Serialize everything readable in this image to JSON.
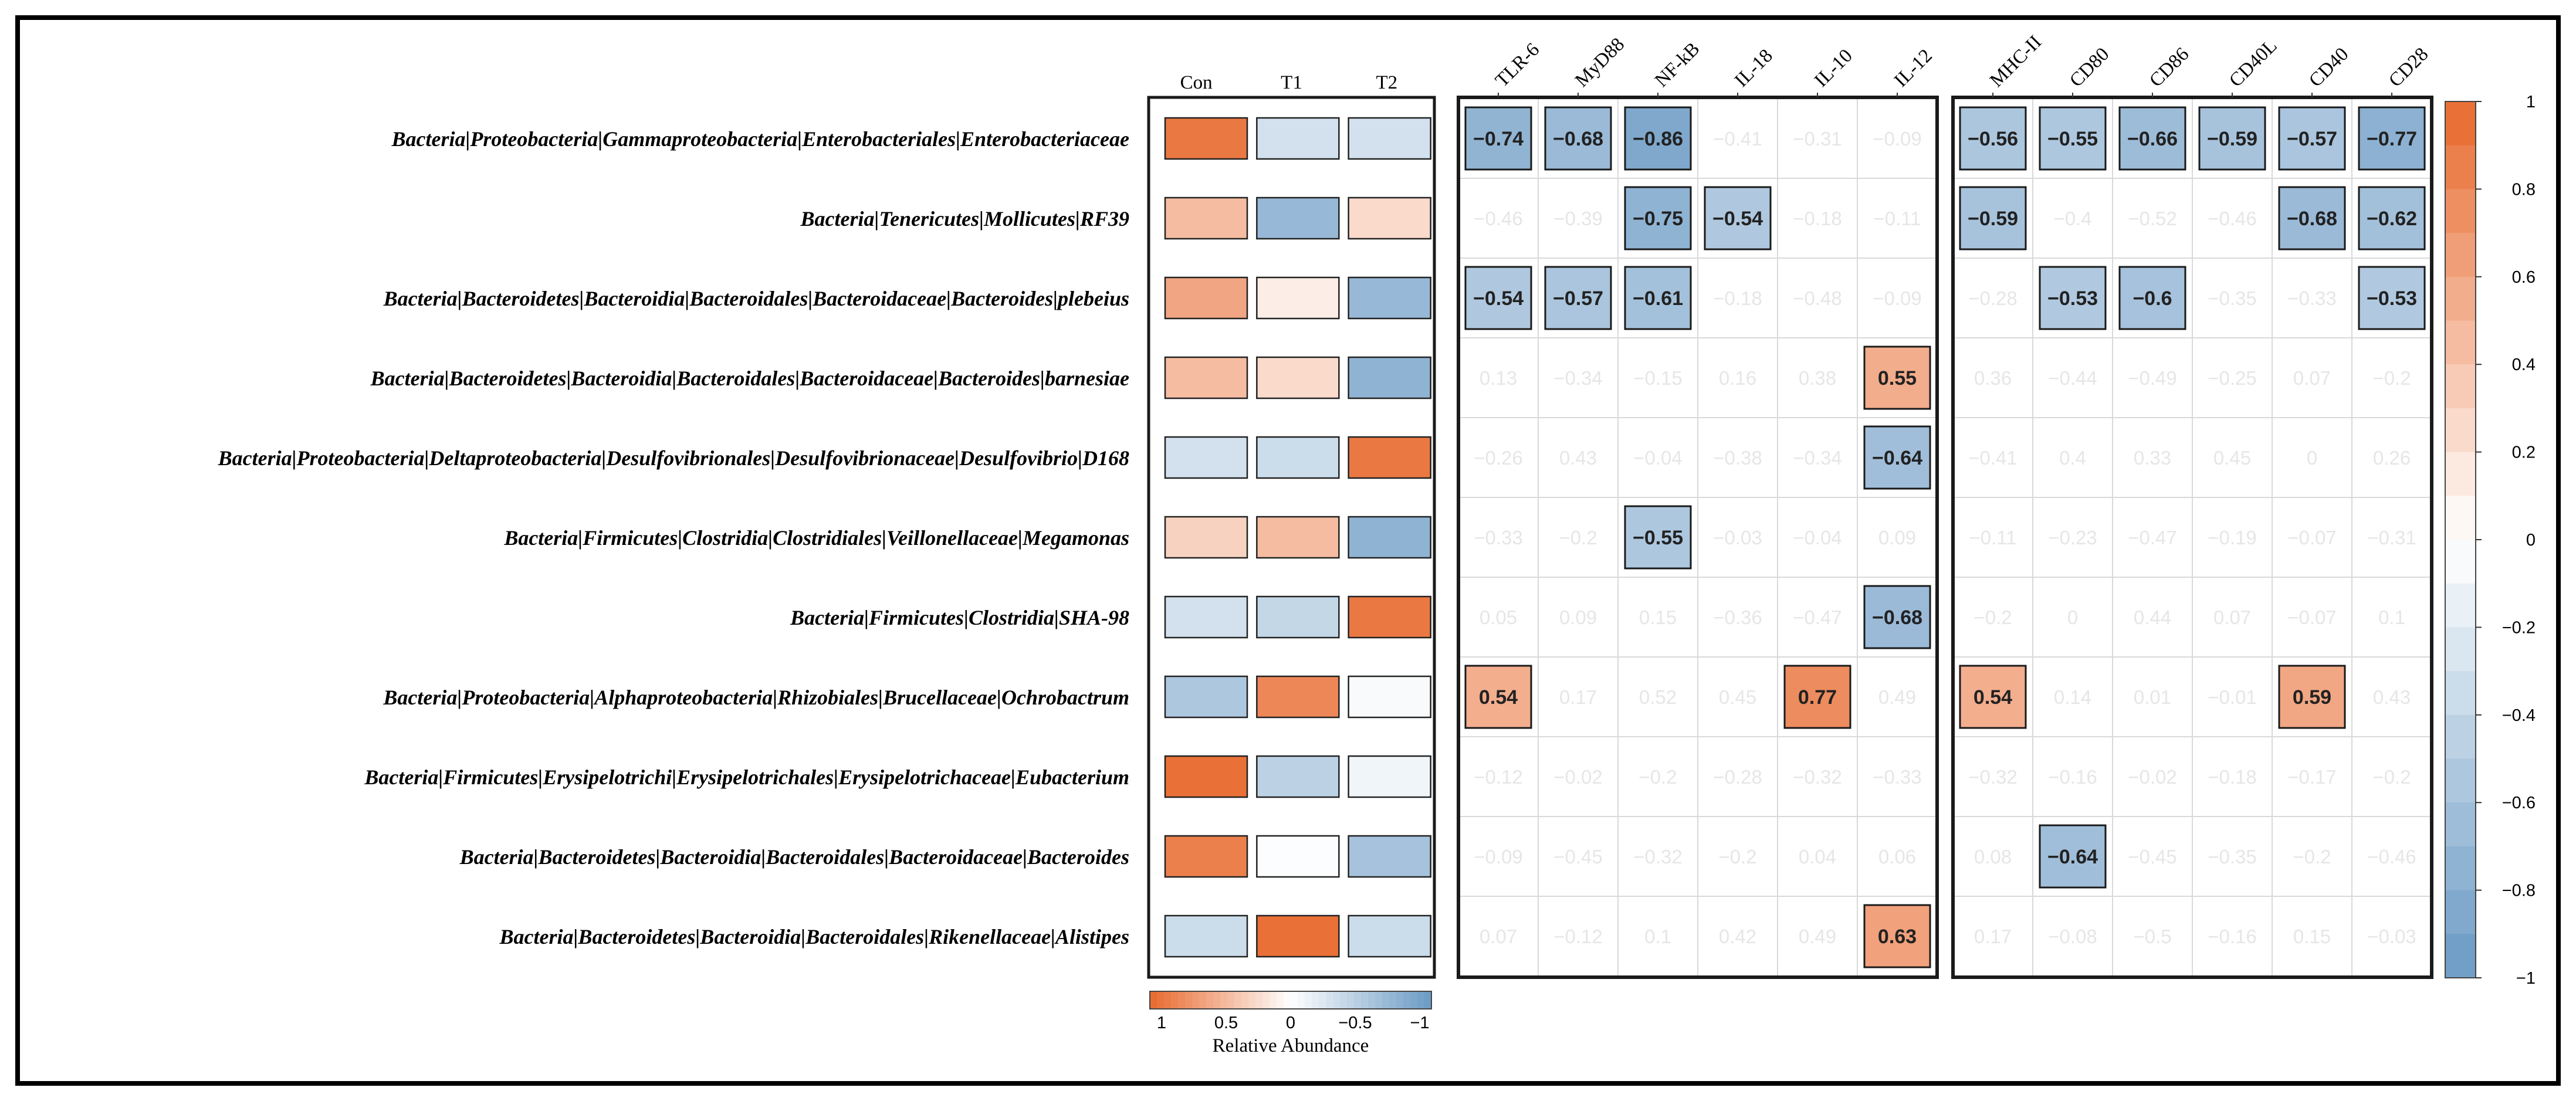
{
  "chart_data": {
    "type": "heatmap",
    "taxa": [
      "Bacteria|Proteobacteria|Gammaproteobacteria|Enterobacteriales|Enterobacteriaceae",
      "Bacteria|Tenericutes|Mollicutes|RF39",
      "Bacteria|Bacteroidetes|Bacteroidia|Bacteroidales|Bacteroidaceae|Bacteroides|plebeius",
      "Bacteria|Bacteroidetes|Bacteroidia|Bacteroidales|Bacteroidaceae|Bacteroides|barnesiae",
      "Bacteria|Proteobacteria|Deltaproteobacteria|Desulfovibrionales|Desulfovibrionaceae|Desulfovibrio|D168",
      "Bacteria|Firmicutes|Clostridia|Clostridiales|Veillonellaceae|Megamonas",
      "Bacteria|Firmicutes|Clostridia|SHA-98",
      "Bacteria|Proteobacteria|Alphaproteobacteria|Rhizobiales|Brucellaceae|Ochrobactrum",
      "Bacteria|Firmicutes|Erysipelotrichi|Erysipelotrichales|Erysipelotrichaceae|Eubacterium",
      "Bacteria|Bacteroidetes|Bacteroidia|Bacteroidales|Bacteroidaceae|Bacteroides",
      "Bacteria|Bacteroidetes|Bacteroidia|Bacteroidales|Rikenellaceae|Alistipes"
    ],
    "abundance": {
      "groups": [
        "Con",
        "T1",
        "T2"
      ],
      "values": [
        [
          0.9,
          -0.3,
          -0.3
        ],
        [
          0.45,
          -0.7,
          0.25
        ],
        [
          0.6,
          0.12,
          -0.7
        ],
        [
          0.45,
          0.25,
          -0.75
        ],
        [
          -0.3,
          -0.35,
          0.9
        ],
        [
          0.3,
          0.45,
          -0.75
        ],
        [
          -0.3,
          -0.4,
          0.9
        ],
        [
          -0.55,
          0.8,
          -0.05
        ],
        [
          0.95,
          -0.45,
          -0.1
        ],
        [
          0.85,
          -0.02,
          -0.6
        ],
        [
          -0.35,
          0.95,
          -0.35
        ]
      ],
      "legend_title": "Relative Abundance",
      "legend_ticks": [
        "1",
        "0.5",
        "0",
        "−0.5",
        "−1"
      ]
    },
    "panel1": {
      "columns": [
        "TLR-6",
        "MyD88",
        "NF-kB",
        "IL-18",
        "IL-10",
        "IL-12"
      ],
      "values": [
        [
          -0.74,
          -0.68,
          -0.86,
          -0.41,
          -0.31,
          -0.09
        ],
        [
          -0.46,
          -0.39,
          -0.75,
          -0.54,
          -0.18,
          -0.11
        ],
        [
          -0.54,
          -0.57,
          -0.61,
          -0.18,
          -0.48,
          -0.09
        ],
        [
          0.13,
          -0.34,
          -0.15,
          0.16,
          0.38,
          0.55
        ],
        [
          -0.26,
          0.43,
          -0.04,
          -0.38,
          -0.34,
          -0.64
        ],
        [
          -0.33,
          -0.2,
          -0.55,
          -0.03,
          -0.04,
          0.09
        ],
        [
          0.05,
          0.09,
          0.15,
          -0.36,
          -0.47,
          -0.68
        ],
        [
          0.54,
          0.17,
          0.52,
          0.45,
          0.77,
          0.49
        ],
        [
          -0.12,
          -0.02,
          -0.2,
          -0.28,
          -0.32,
          -0.33
        ],
        [
          -0.09,
          -0.45,
          -0.32,
          -0.2,
          0.04,
          0.06
        ],
        [
          0.07,
          -0.12,
          0.1,
          0.42,
          0.49,
          0.63
        ]
      ],
      "significant": [
        [
          1,
          1,
          1,
          0,
          0,
          0
        ],
        [
          0,
          0,
          1,
          1,
          0,
          0
        ],
        [
          1,
          1,
          1,
          0,
          0,
          0
        ],
        [
          0,
          0,
          0,
          0,
          0,
          1
        ],
        [
          0,
          0,
          0,
          0,
          0,
          1
        ],
        [
          0,
          0,
          1,
          0,
          0,
          0
        ],
        [
          0,
          0,
          0,
          0,
          0,
          1
        ],
        [
          1,
          0,
          0,
          0,
          1,
          0
        ],
        [
          0,
          0,
          0,
          0,
          0,
          0
        ],
        [
          0,
          0,
          0,
          0,
          0,
          0
        ],
        [
          0,
          0,
          0,
          0,
          0,
          1
        ]
      ]
    },
    "panel2": {
      "columns": [
        "MHC-II",
        "CD80",
        "CD86",
        "CD40L",
        "CD40",
        "CD28"
      ],
      "values": [
        [
          -0.56,
          -0.55,
          -0.66,
          -0.59,
          -0.57,
          -0.77
        ],
        [
          -0.59,
          -0.4,
          -0.52,
          -0.46,
          -0.68,
          -0.62
        ],
        [
          -0.28,
          -0.53,
          -0.6,
          -0.35,
          -0.33,
          -0.53
        ],
        [
          0.36,
          -0.44,
          -0.49,
          -0.25,
          0.07,
          -0.2
        ],
        [
          -0.41,
          0.4,
          0.33,
          0.45,
          0,
          0.26
        ],
        [
          -0.11,
          -0.23,
          -0.47,
          -0.19,
          -0.07,
          -0.31
        ],
        [
          -0.2,
          0,
          0.44,
          0.07,
          -0.07,
          0.1
        ],
        [
          0.54,
          0.14,
          0.01,
          -0.01,
          0.59,
          0.43
        ],
        [
          -0.32,
          -0.16,
          -0.02,
          -0.18,
          -0.17,
          -0.2
        ],
        [
          0.08,
          -0.64,
          -0.45,
          -0.35,
          -0.2,
          -0.46
        ],
        [
          0.17,
          -0.08,
          -0.5,
          -0.16,
          0.15,
          -0.03
        ]
      ],
      "significant": [
        [
          1,
          1,
          1,
          1,
          1,
          1
        ],
        [
          1,
          0,
          0,
          0,
          1,
          1
        ],
        [
          0,
          1,
          1,
          0,
          0,
          1
        ],
        [
          0,
          0,
          0,
          0,
          0,
          0
        ],
        [
          0,
          0,
          0,
          0,
          0,
          0
        ],
        [
          0,
          0,
          0,
          0,
          0,
          0
        ],
        [
          0,
          0,
          0,
          0,
          0,
          0
        ],
        [
          1,
          0,
          0,
          0,
          1,
          0
        ],
        [
          0,
          0,
          0,
          0,
          0,
          0
        ],
        [
          0,
          1,
          0,
          0,
          0,
          0
        ],
        [
          0,
          0,
          0,
          0,
          0,
          0
        ]
      ]
    },
    "colorbar": {
      "range": [
        -1,
        1
      ],
      "ticks": [
        1,
        0.8,
        0.6,
        0.4,
        0.2,
        0,
        -0.2,
        -0.4,
        -0.6,
        -0.8,
        -1
      ],
      "tick_labels": [
        "1",
        "0.8",
        "0.6",
        "0.4",
        "0.2",
        "0",
        "−0.2",
        "−0.4",
        "−0.6",
        "−0.8",
        "−1"
      ]
    },
    "colors": {
      "positive": "#E8692E",
      "neutral": "#FFFFFF",
      "negative": "#6A9AC4",
      "grid": "#D9D9D9",
      "faint_text": "#E6E6E6",
      "border": "#1A1A1A"
    }
  }
}
